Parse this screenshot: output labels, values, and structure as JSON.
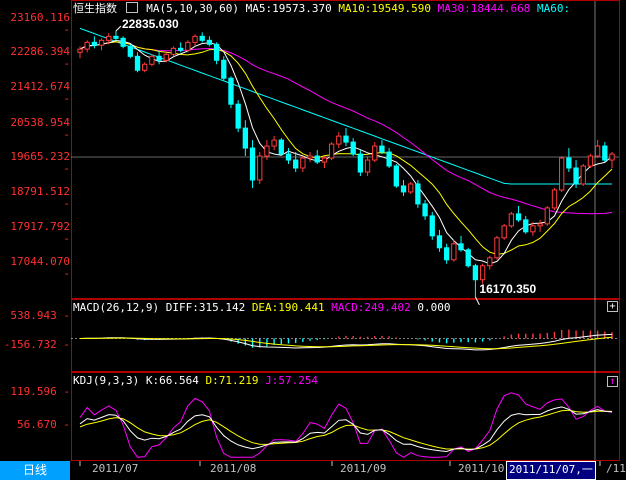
{
  "main_panel": {
    "title": "恒生指数",
    "ma_legend": [
      {
        "text": "MA(5,10,30,60)",
        "color": "#ffffff"
      },
      {
        "text": "MA5:19573.370",
        "color": "#ffffff"
      },
      {
        "text": "MA10:19549.590",
        "color": "#ffff00"
      },
      {
        "text": "MA30:18444.668",
        "color": "#ff00ff"
      },
      {
        "text": "MA60:",
        "color": "#00ffff"
      }
    ],
    "y_ticks": [
      "23160.116",
      "22286.394",
      "21412.674",
      "20538.954",
      "19665.232",
      "18791.512",
      "17917.792",
      "17044.070"
    ],
    "y_tick_values": [
      23160.116,
      22286.394,
      21412.674,
      20538.954,
      19665.232,
      18791.512,
      17917.792,
      17044.07
    ],
    "high_label": "22835.030",
    "low_label": "16170.350"
  },
  "macd_panel": {
    "legend": [
      {
        "text": "MACD(26,12,9)",
        "color": "#ffffff"
      },
      {
        "text": "DIFF:315.142",
        "color": "#ffffff"
      },
      {
        "text": "DEA:190.441",
        "color": "#ffff00"
      },
      {
        "text": "MACD:249.402",
        "color": "#ff00ff"
      },
      {
        "text": "0.000",
        "color": "#ffffff"
      }
    ],
    "y_ticks": [
      "538.943",
      "-156.732"
    ],
    "button": "+"
  },
  "kdj_panel": {
    "legend": [
      {
        "text": "KDJ(9,3,3)",
        "color": "#ffffff"
      },
      {
        "text": "K:66.564",
        "color": "#ffffff"
      },
      {
        "text": "D:71.219",
        "color": "#ffff00"
      },
      {
        "text": "J:57.254",
        "color": "#ff00ff"
      }
    ],
    "y_ticks": [
      "119.596",
      "56.670"
    ],
    "button": "↑"
  },
  "x_axis": {
    "labels": [
      "2011/07",
      "2011/08",
      "2011/09",
      "2011/10",
      "/11"
    ],
    "selected_date": "2011/11/07,一"
  },
  "period_tab": "日线",
  "colors": {
    "up": "#ff3c3c",
    "down": "#00ffff",
    "ma5": "#ffffff",
    "ma10": "#ffff00",
    "ma30": "#ff00ff",
    "ma60": "#00ffff",
    "frame": "#b00000"
  },
  "chart_data": {
    "type": "candlestick",
    "note_series": "daily OHLC",
    "ohlc": [
      [
        22300,
        22450,
        22150,
        22380
      ],
      [
        22380,
        22600,
        22300,
        22550
      ],
      [
        22550,
        22700,
        22400,
        22480
      ],
      [
        22480,
        22650,
        22350,
        22600
      ],
      [
        22600,
        22780,
        22500,
        22700
      ],
      [
        22700,
        22835,
        22600,
        22650
      ],
      [
        22650,
        22700,
        22400,
        22450
      ],
      [
        22450,
        22500,
        22150,
        22200
      ],
      [
        22200,
        22300,
        21800,
        21850
      ],
      [
        21850,
        22050,
        21800,
        22000
      ],
      [
        22000,
        22250,
        21950,
        22200
      ],
      [
        22200,
        22350,
        22000,
        22100
      ],
      [
        22100,
        22300,
        22050,
        22250
      ],
      [
        22250,
        22450,
        22200,
        22400
      ],
      [
        22400,
        22550,
        22300,
        22350
      ],
      [
        22350,
        22600,
        22300,
        22550
      ],
      [
        22550,
        22750,
        22450,
        22700
      ],
      [
        22700,
        22800,
        22550,
        22600
      ],
      [
        22600,
        22700,
        22450,
        22500
      ],
      [
        22500,
        22550,
        22000,
        22100
      ],
      [
        22100,
        22200,
        21600,
        21650
      ],
      [
        21650,
        21700,
        20900,
        21000
      ],
      [
        21000,
        21100,
        20300,
        20400
      ],
      [
        20400,
        20600,
        19700,
        19900
      ],
      [
        19900,
        20100,
        18900,
        19100
      ],
      [
        19100,
        19800,
        19000,
        19700
      ],
      [
        19700,
        20100,
        19600,
        19950
      ],
      [
        19950,
        20200,
        19850,
        20100
      ],
      [
        20100,
        20150,
        19700,
        19750
      ],
      [
        19750,
        19900,
        19500,
        19600
      ],
      [
        19600,
        19800,
        19300,
        19400
      ],
      [
        19400,
        19700,
        19300,
        19650
      ],
      [
        19650,
        19800,
        19550,
        19700
      ],
      [
        19700,
        19850,
        19500,
        19550
      ],
      [
        19550,
        19700,
        19400,
        19650
      ],
      [
        19650,
        20050,
        19600,
        20000
      ],
      [
        20000,
        20300,
        19900,
        20200
      ],
      [
        20200,
        20400,
        19950,
        20050
      ],
      [
        20050,
        20150,
        19700,
        19750
      ],
      [
        19750,
        19850,
        19200,
        19300
      ],
      [
        19300,
        19700,
        19200,
        19600
      ],
      [
        19600,
        20050,
        19550,
        19950
      ],
      [
        19950,
        20100,
        19750,
        19800
      ],
      [
        19800,
        19900,
        19400,
        19450
      ],
      [
        19450,
        19500,
        18900,
        18950
      ],
      [
        18950,
        19100,
        18700,
        18800
      ],
      [
        18800,
        19050,
        18750,
        19000
      ],
      [
        19000,
        19100,
        18400,
        18500
      ],
      [
        18500,
        18600,
        18100,
        18200
      ],
      [
        18200,
        18300,
        17600,
        17700
      ],
      [
        17700,
        17850,
        17300,
        17400
      ],
      [
        17400,
        17500,
        17000,
        17100
      ],
      [
        17100,
        17600,
        17050,
        17500
      ],
      [
        17500,
        17700,
        17300,
        17350
      ],
      [
        17350,
        17400,
        16900,
        16950
      ],
      [
        16950,
        17000,
        16170,
        16600
      ],
      [
        16600,
        17000,
        16500,
        16950
      ],
      [
        16950,
        17200,
        16850,
        17150
      ],
      [
        17150,
        17700,
        17100,
        17650
      ],
      [
        17650,
        18000,
        17600,
        17950
      ],
      [
        17950,
        18300,
        17900,
        18250
      ],
      [
        18250,
        18450,
        18050,
        18100
      ],
      [
        18100,
        18200,
        17750,
        17800
      ],
      [
        17800,
        18050,
        17700,
        17950
      ],
      [
        17950,
        18100,
        17800,
        18000
      ],
      [
        18000,
        18450,
        17950,
        18400
      ],
      [
        18400,
        18900,
        18350,
        18850
      ],
      [
        18850,
        19700,
        18800,
        19650
      ],
      [
        19650,
        19900,
        19300,
        19400
      ],
      [
        19400,
        19600,
        18900,
        19000
      ],
      [
        19000,
        19500,
        18950,
        19450
      ],
      [
        19450,
        19750,
        19400,
        19700
      ],
      [
        19700,
        20100,
        19650,
        19950
      ],
      [
        19950,
        20050,
        19550,
        19600
      ],
      [
        19600,
        19800,
        19400,
        19750
      ]
    ],
    "y_range": [
      16170.35,
      23160.116
    ],
    "macd_range": [
      -156.732,
      538.943
    ],
    "kdj_range": [
      0,
      119.596
    ]
  }
}
